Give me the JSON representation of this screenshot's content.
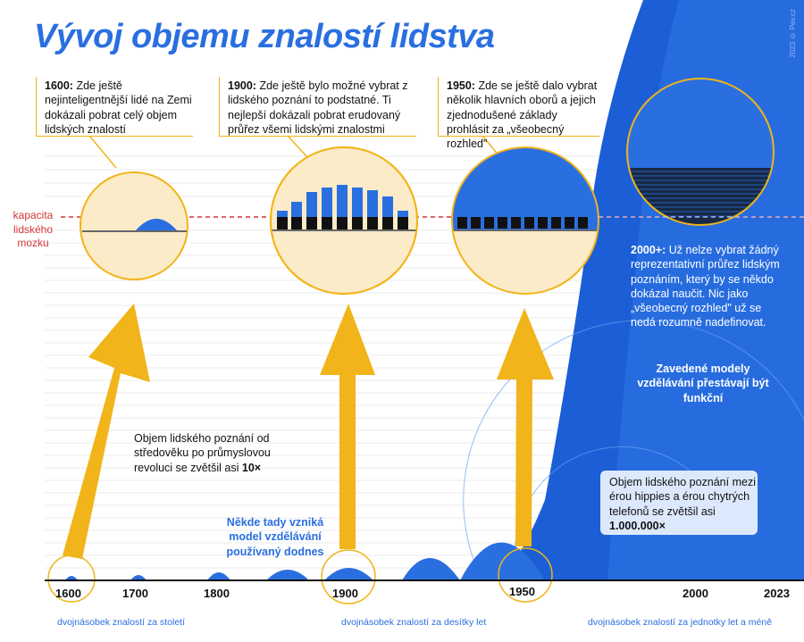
{
  "title": "Vývoj objemu znalostí lidstva",
  "copyright": "2023 © Pev.cz",
  "capacity_label": [
    "kapacita",
    "lidského",
    "mozku"
  ],
  "notes": {
    "n1600": {
      "year": "1600:",
      "text": " Zde ještě nejinteligentnější lidé na Zemi dokázali pobrat celý objem lidských znalostí"
    },
    "n1900": {
      "year": "1900:",
      "text": " Zde ještě bylo možné vybrat z lidského poznání to podstatné. Ti nejlepší dokázali pobrat erudovaný průřez všemi lidskými znalostmi"
    },
    "n1950": {
      "year": "1950:",
      "text": " Zde se ještě dalo vybrat několik hlavních oborů a jejich zjednodušené základy prohlásit za „všeobecný rozhled\""
    },
    "n2000": {
      "year": "2000+:",
      "text": " Už nelze vybrat žádný reprezentativní průřez lidským poznáním, který by se někdo dokázal naučit. Nic jako „všeobecný rozhled\" už se nedá rozumně nadefinovat."
    }
  },
  "models_fail": "Zavedené modely vzdělávání přestávají být funkční",
  "growth_10x": {
    "text": "Objem lidského poznání od středověku po průmyslovou revoluci se zvětšil asi ",
    "value": "10×"
  },
  "growth_1m": {
    "text": "Objem lidského poznání mezi érou hippies a érou chytrých telefonů se zvětšil asi ",
    "value": "1.000.000×"
  },
  "model_born": "Někde tady vzniká model vzdělávání používaný dodnes",
  "axis": {
    "years": [
      "1600",
      "1700",
      "1800",
      "1900",
      "1950",
      "2000",
      "2023"
    ]
  },
  "footer": {
    "left": "dvojnásobek znalostí za století",
    "middle": "dvojnásobek znalostí za desítky let",
    "right": "dvojnásobek znalostí za jednotky let a méně"
  },
  "colors": {
    "accent_blue": "#2a6fe0",
    "deep_blue": "#1b5ed6",
    "arrow_gold": "#f1b41a",
    "circle_fill": "#fcebc8",
    "capacity_red": "#d2343a"
  }
}
